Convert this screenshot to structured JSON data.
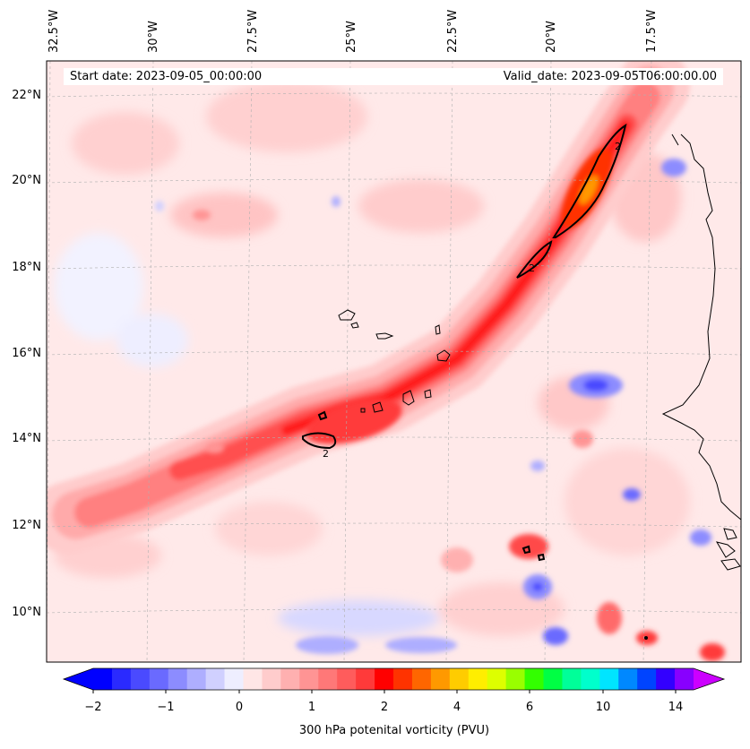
{
  "header": {
    "start_date": "Start date: 2023-09-05_00:00:00",
    "valid_date": "Valid_date: 2023-09-05T06:00:00.00"
  },
  "axes": {
    "lon_labels": [
      "32.5°W",
      "30°W",
      "27.5°W",
      "25°W",
      "22.5°W",
      "20°W",
      "17.5°W"
    ],
    "lat_labels": [
      "22°N",
      "20°N",
      "18°N",
      "16°N",
      "14°N",
      "12°N",
      "10°N"
    ]
  },
  "contours": {
    "label": "2"
  },
  "colorbar": {
    "label": "300 hPa potenital vorticity (PVU)",
    "ticks": [
      "−2",
      "−1",
      "0",
      "1",
      "2",
      "4",
      "6",
      "10",
      "14"
    ],
    "colors": [
      "#0000ff",
      "#2a2aff",
      "#4a4aff",
      "#6a6aff",
      "#8c8cff",
      "#aeaeff",
      "#d0d0ff",
      "#eeeeff",
      "#ffe6e6",
      "#ffcccc",
      "#ffb0b0",
      "#ff9494",
      "#ff7878",
      "#ff5c5c",
      "#ff3a3a",
      "#ff0000",
      "#ff3300",
      "#ff6600",
      "#ff9900",
      "#ffcc00",
      "#ffee00",
      "#ddff00",
      "#99ff00",
      "#33ff00",
      "#00ff44",
      "#00ff99",
      "#00ffcc",
      "#00e5ff",
      "#0088ff",
      "#0044ff",
      "#3300ff",
      "#8800ff"
    ]
  }
}
